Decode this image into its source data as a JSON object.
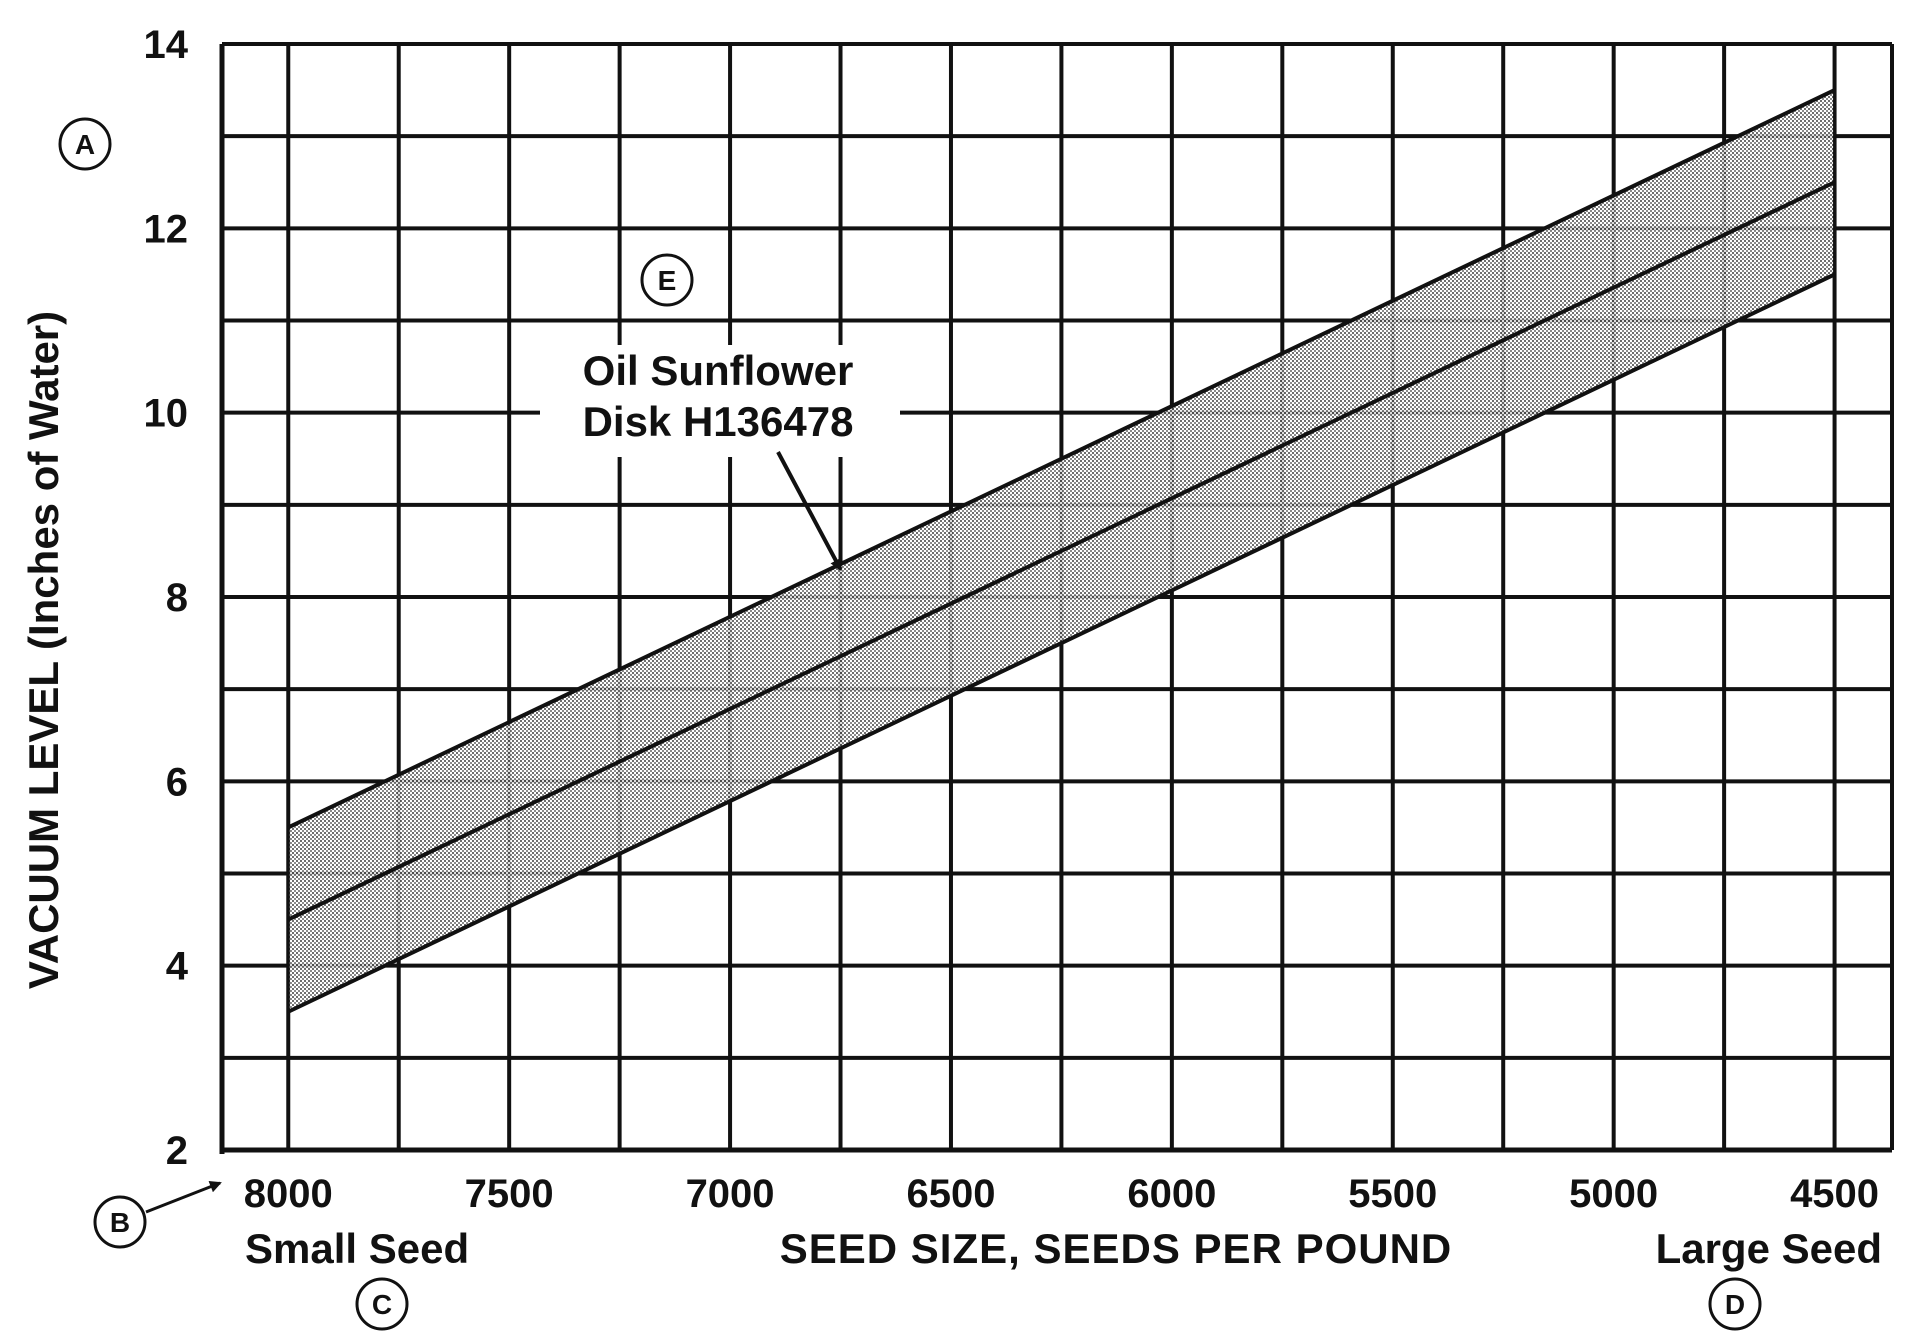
{
  "chart_data": {
    "type": "line",
    "title": "",
    "xlabel": "SEED SIZE, SEEDS PER POUND",
    "ylabel": "VACUUM LEVEL (Inches of Water)",
    "x_reversed": true,
    "xlim": [
      8150,
      4370
    ],
    "ylim": [
      2,
      14
    ],
    "x_ticks": [
      8000,
      7500,
      7000,
      6500,
      6000,
      5500,
      5000,
      4500
    ],
    "x_tick_labels": [
      "8000",
      "7500",
      "7000",
      "6500",
      "6000",
      "5500",
      "5000",
      "4500"
    ],
    "y_ticks": [
      2,
      4,
      6,
      8,
      10,
      12,
      14
    ],
    "y_tick_labels": [
      "2",
      "4",
      "6",
      "8",
      "10",
      "12",
      "14"
    ],
    "grid": true,
    "x_grid_step": 250,
    "y_grid_step": 1,
    "x_end_labels": {
      "left": "Small Seed",
      "right": "Large Seed"
    },
    "series": [
      {
        "x": [
          8000,
          4500
        ],
        "y": [
          4.5,
          12.5
        ]
      }
    ],
    "band": {
      "x": [
        8000,
        4500
      ],
      "upper": [
        5.5,
        13.5
      ],
      "lower": [
        3.5,
        11.5
      ],
      "fill": "stippled gray"
    },
    "annotation": {
      "lines": [
        "Oil Sunflower",
        "Disk H136478"
      ],
      "arrow_target": {
        "x": 6750,
        "y": 8.3
      }
    },
    "callouts": [
      "A",
      "B",
      "C",
      "D",
      "E"
    ]
  },
  "colors": {
    "ink": "#111111",
    "band_fill": "#b8b8b8",
    "background": "#ffffff"
  }
}
